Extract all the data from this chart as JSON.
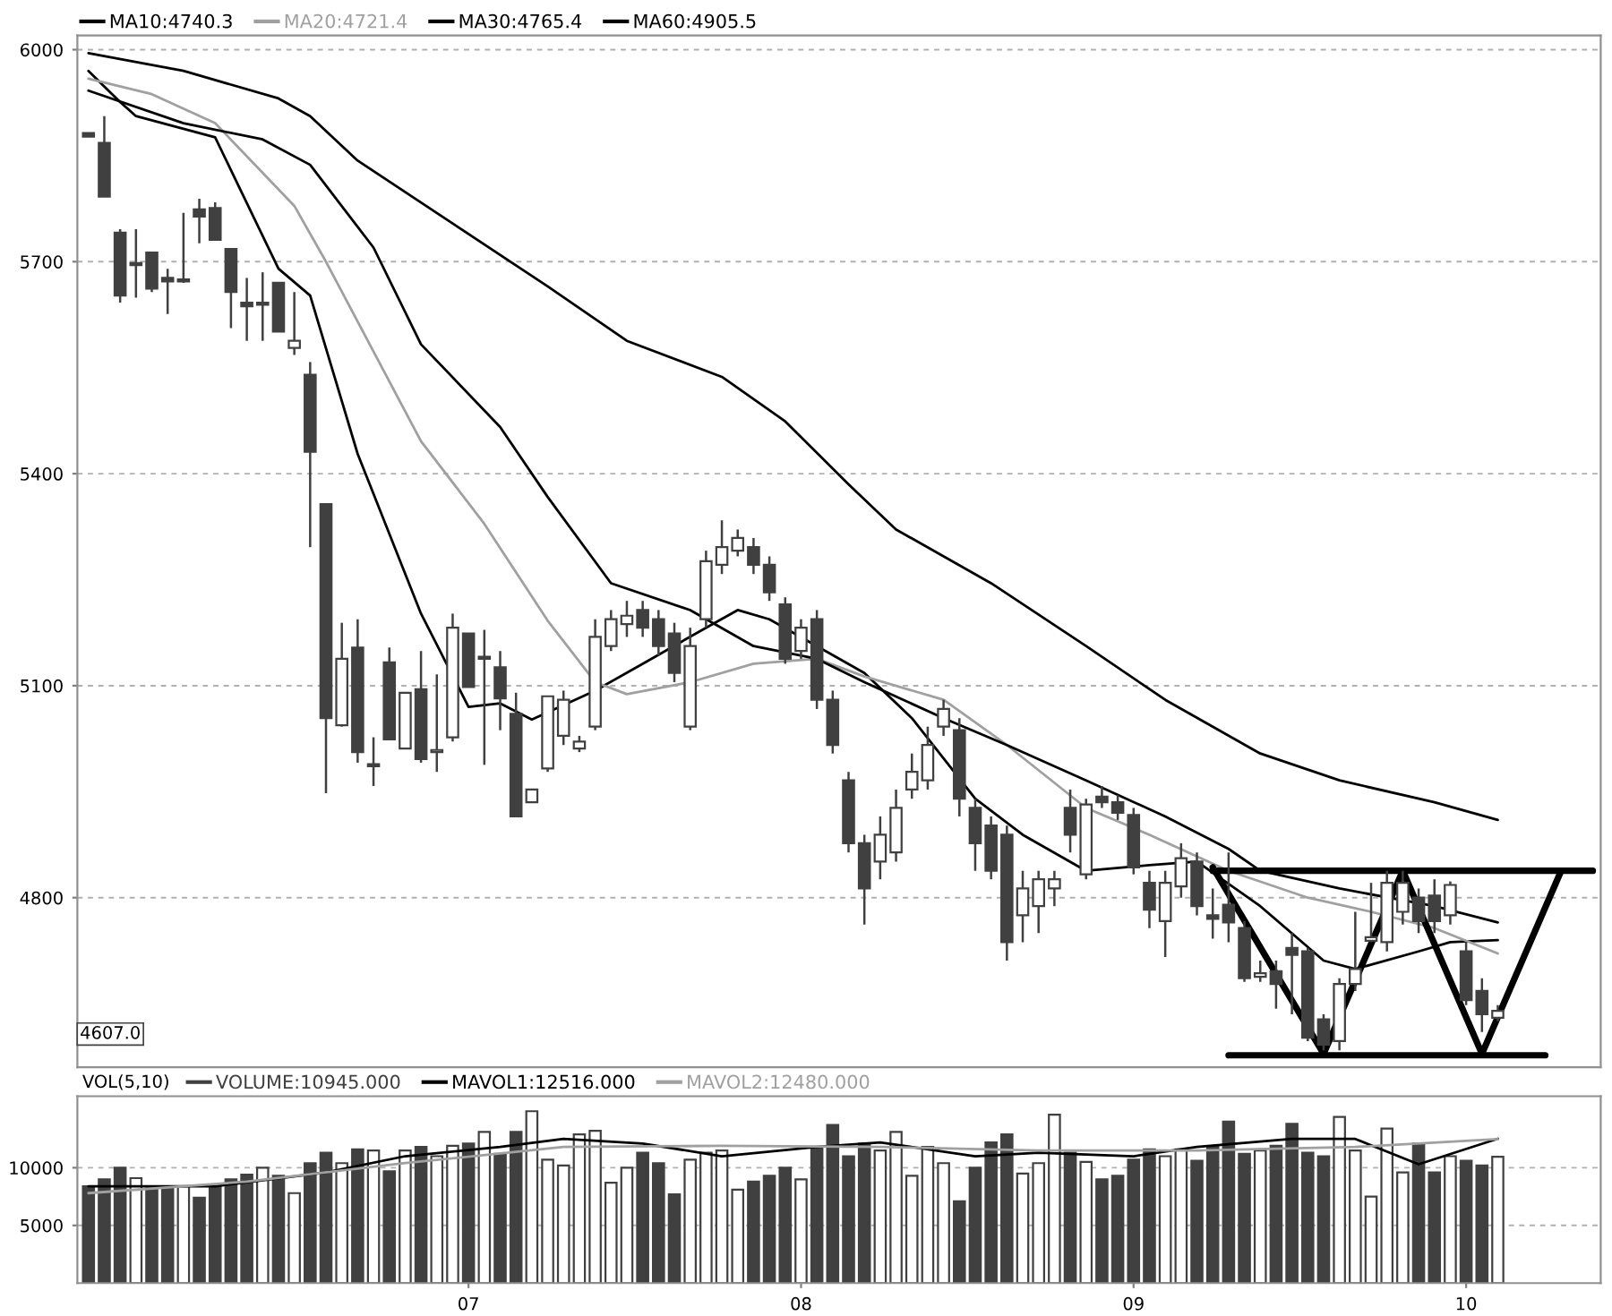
{
  "chart_data": [
    {
      "type": "candlestick",
      "color": "#404040",
      "categories": [
        null,
        null,
        null,
        null,
        null,
        null,
        null,
        null,
        null,
        null,
        null,
        null,
        null,
        null,
        null,
        null,
        null,
        null,
        null,
        null,
        null,
        null,
        null,
        null,
        null,
        null,
        null,
        null,
        null,
        null,
        null,
        null,
        null,
        null,
        null,
        null,
        null,
        null,
        null,
        null,
        null,
        null,
        null,
        null,
        null,
        null,
        null,
        null,
        null,
        null,
        null,
        null,
        null,
        null,
        null,
        null,
        null,
        null,
        null,
        null,
        null,
        null,
        null,
        null,
        null,
        null,
        null,
        null,
        null,
        null,
        null,
        null,
        null,
        null,
        null,
        null,
        null,
        null,
        null,
        null,
        null,
        null,
        null,
        null,
        null,
        null,
        null,
        null,
        null,
        null,
        null,
        null,
        null,
        null,
        null,
        null
      ],
      "ohlc": [
        [
          5882,
          5882,
          5877,
          5877
        ],
        [
          5868,
          5906,
          5792,
          5792
        ],
        [
          5741,
          5746,
          5642,
          5652
        ],
        [
          5695,
          5746,
          5649,
          5698
        ],
        [
          5713,
          5713,
          5657,
          5662
        ],
        [
          5677,
          5690,
          5626,
          5672
        ],
        [
          5672,
          5769,
          5670,
          5675
        ],
        [
          5774,
          5789,
          5726,
          5764
        ],
        [
          5776,
          5784,
          5731,
          5731
        ],
        [
          5718,
          5718,
          5606,
          5657
        ],
        [
          5642,
          5677,
          5588,
          5637
        ],
        [
          5639,
          5685,
          5588,
          5642
        ],
        [
          5670,
          5670,
          5601,
          5601
        ],
        [
          5578,
          5657,
          5568,
          5588
        ],
        [
          5540,
          5558,
          5296,
          5431
        ],
        [
          5357,
          5357,
          4948,
          5054
        ],
        [
          5044,
          5189,
          5042,
          5138
        ],
        [
          5154,
          5194,
          4991,
          5006
        ],
        [
          4986,
          5027,
          4958,
          4989
        ],
        [
          5133,
          5154,
          5024,
          5024
        ],
        [
          5011,
          5090,
          5011,
          5090
        ],
        [
          5095,
          5149,
          4991,
          4996
        ],
        [
          5006,
          5116,
          4978,
          5009
        ],
        [
          5027,
          5202,
          5021,
          5182
        ],
        [
          5174,
          5174,
          5098,
          5098
        ],
        [
          5138,
          5179,
          4988,
          5141
        ],
        [
          5126,
          5149,
          5037,
          5082
        ],
        [
          5060,
          5090,
          4915,
          4915
        ],
        [
          4935,
          4953,
          4935,
          4953
        ],
        [
          4983,
          5085,
          4978,
          5085
        ],
        [
          5029,
          5093,
          5016,
          5080
        ],
        [
          5011,
          5029,
          5006,
          5021
        ],
        [
          5042,
          5194,
          5037,
          5169
        ],
        [
          5156,
          5207,
          5149,
          5194
        ],
        [
          5187,
          5220,
          5169,
          5199
        ],
        [
          5207,
          5220,
          5169,
          5182
        ],
        [
          5194,
          5207,
          5143,
          5156
        ],
        [
          5174,
          5189,
          5105,
          5118
        ],
        [
          5042,
          5182,
          5037,
          5156
        ],
        [
          5194,
          5291,
          5182,
          5276
        ],
        [
          5271,
          5334,
          5258,
          5296
        ],
        [
          5291,
          5321,
          5283,
          5309
        ],
        [
          5296,
          5309,
          5258,
          5271
        ],
        [
          5271,
          5283,
          5220,
          5232
        ],
        [
          5215,
          5225,
          5131,
          5138
        ],
        [
          5149,
          5194,
          5138,
          5182
        ],
        [
          5194,
          5207,
          5067,
          5080
        ],
        [
          5080,
          5093,
          5004,
          5016
        ],
        [
          4966,
          4978,
          4864,
          4877
        ],
        [
          4877,
          4889,
          4762,
          4813
        ],
        [
          4851,
          4915,
          4826,
          4889
        ],
        [
          4864,
          4953,
          4851,
          4927
        ],
        [
          4953,
          5004,
          4940,
          4978
        ],
        [
          4966,
          5042,
          4953,
          5016
        ],
        [
          5042,
          5080,
          5029,
          5067
        ],
        [
          5037,
          5054,
          4915,
          4940
        ],
        [
          4927,
          4940,
          4838,
          4877
        ],
        [
          4902,
          4915,
          4826,
          4838
        ],
        [
          4889,
          4902,
          4711,
          4737
        ],
        [
          4775,
          4838,
          4737,
          4813
        ],
        [
          4788,
          4838,
          4750,
          4826
        ],
        [
          4813,
          4838,
          4788,
          4826
        ],
        [
          4927,
          4953,
          4864,
          4889
        ],
        [
          4833,
          4940,
          4826,
          4932
        ],
        [
          4943,
          4958,
          4927,
          4935
        ],
        [
          4935,
          4945,
          4910,
          4920
        ],
        [
          4917,
          4927,
          4833,
          4843
        ],
        [
          4821,
          4838,
          4757,
          4783
        ],
        [
          4767,
          4838,
          4716,
          4821
        ],
        [
          4816,
          4877,
          4800,
          4856
        ],
        [
          4851,
          4864,
          4775,
          4788
        ],
        [
          4775,
          4813,
          4742,
          4770
        ],
        [
          4790,
          4864,
          4737,
          4765
        ],
        [
          4757,
          4767,
          4681,
          4686
        ],
        [
          4688,
          4711,
          4681,
          4693
        ],
        [
          4696,
          4711,
          4643,
          4678
        ],
        [
          4729,
          4750,
          4635,
          4719
        ],
        [
          4724,
          4729,
          4597,
          4602
        ],
        [
          4628,
          4635,
          4584,
          4592
        ],
        [
          4597,
          4686,
          4584,
          4678
        ],
        [
          4678,
          4780,
          4668,
          4699
        ],
        [
          4739,
          4821,
          4737,
          4744
        ],
        [
          4737,
          4838,
          4724,
          4821
        ],
        [
          4780,
          4838,
          4762,
          4821
        ],
        [
          4800,
          4813,
          4750,
          4767
        ],
        [
          4803,
          4826,
          4750,
          4767
        ],
        [
          4775,
          4823,
          4762,
          4818
        ],
        [
          4724,
          4737,
          4648,
          4655
        ],
        [
          4668,
          4686,
          4610,
          4635
        ],
        [
          4630,
          4648,
          4625,
          4640
        ],
        null,
        null,
        null,
        null,
        null,
        null
      ],
      "series": [
        {
          "type": "line",
          "name": "MA10:4740.3",
          "color": "#000000",
          "values": [
            5970,
            null,
            5926,
            5906,
            null,
            null,
            null,
            null,
            5876,
            null,
            null,
            null,
            5690,
            null,
            5652,
            null,
            null,
            5428,
            null,
            null,
            null,
            5202,
            null,
            null,
            5070,
            null,
            5075,
            null,
            5052,
            null,
            null,
            null,
            5093,
            null,
            null,
            5131,
            null,
            null,
            null,
            5182,
            null,
            5207,
            null,
            5194,
            null,
            null,
            5156,
            null,
            null,
            5118,
            null,
            null,
            5054,
            null,
            null,
            null,
            4940,
            null,
            null,
            4889,
            null,
            null,
            null,
            4838,
            null,
            null,
            null,
            4846,
            null,
            null,
            4851,
            null,
            null,
            null,
            4788,
            null,
            null,
            null,
            4711,
            null,
            4699,
            null,
            null,
            null,
            4724,
            null,
            4737,
            null,
            null,
            4740,
            null,
            null,
            null,
            null,
            null,
            null
          ]
        },
        {
          "type": "line",
          "name": "MA20:4721.4",
          "color": "#a0a0a0",
          "values": [
            5959,
            null,
            null,
            null,
            5937,
            null,
            null,
            null,
            5896,
            null,
            null,
            null,
            null,
            5779,
            null,
            5700,
            null,
            null,
            null,
            null,
            null,
            5446,
            null,
            null,
            null,
            5329,
            null,
            null,
            null,
            5192,
            null,
            null,
            5105,
            null,
            5088,
            null,
            null,
            null,
            5105,
            null,
            null,
            null,
            5131,
            null,
            null,
            null,
            5138,
            null,
            null,
            5113,
            null,
            null,
            null,
            null,
            5080,
            null,
            null,
            null,
            5016,
            null,
            null,
            null,
            null,
            4927,
            null,
            null,
            null,
            4889,
            null,
            null,
            null,
            null,
            4838,
            null,
            null,
            null,
            null,
            4800,
            null,
            null,
            null,
            4780,
            null,
            null,
            null,
            4757,
            null,
            null,
            null,
            4721,
            null,
            null,
            null,
            null,
            null,
            null
          ]
        },
        {
          "type": "line",
          "name": "MA30:4765.4",
          "color": "#000000",
          "values": [
            5942,
            null,
            null,
            null,
            null,
            null,
            5896,
            null,
            null,
            null,
            null,
            5873,
            null,
            null,
            5837,
            null,
            null,
            null,
            5720,
            null,
            null,
            5583,
            null,
            null,
            null,
            null,
            5466,
            null,
            null,
            5367,
            null,
            null,
            null,
            5245,
            null,
            null,
            null,
            null,
            5207,
            null,
            null,
            null,
            5156,
            null,
            null,
            null,
            5138,
            null,
            null,
            5105,
            null,
            null,
            null,
            null,
            5054,
            null,
            null,
            null,
            5016,
            null,
            null,
            null,
            null,
            4966,
            null,
            null,
            null,
            null,
            4915,
            null,
            null,
            null,
            4869,
            null,
            4838,
            null,
            null,
            null,
            null,
            4813,
            null,
            null,
            null,
            null,
            null,
            4788,
            null,
            null,
            null,
            4765,
            null,
            null,
            null,
            null,
            null,
            null
          ]
        },
        {
          "type": "line",
          "name": "MA60:4905.5",
          "color": "#000000",
          "values": [
            5995,
            null,
            null,
            null,
            null,
            null,
            5970,
            null,
            null,
            null,
            null,
            null,
            5931,
            null,
            5906,
            null,
            null,
            5843,
            null,
            null,
            null,
            null,
            null,
            5754,
            null,
            null,
            null,
            null,
            null,
            5665,
            null,
            null,
            null,
            null,
            5588,
            null,
            null,
            null,
            null,
            null,
            5537,
            null,
            null,
            null,
            5474,
            null,
            null,
            null,
            5385,
            null,
            null,
            5321,
            null,
            null,
            null,
            null,
            null,
            5245,
            null,
            null,
            null,
            null,
            null,
            5156,
            null,
            null,
            null,
            null,
            5080,
            null,
            null,
            null,
            null,
            null,
            5004,
            null,
            null,
            null,
            null,
            4966,
            null,
            null,
            null,
            null,
            null,
            4935,
            null,
            null,
            null,
            4910,
            null,
            null,
            null,
            null,
            null,
            null
          ]
        },
        {
          "type": "line",
          "color": "#000000",
          "values": [
            null,
            null,
            null,
            null,
            null,
            null,
            null,
            null,
            null,
            null,
            null,
            null,
            null,
            null,
            null,
            null,
            null,
            null,
            null,
            null,
            null,
            null,
            null,
            null,
            null,
            null,
            null,
            null,
            null,
            null,
            null,
            null,
            null,
            null,
            null,
            null,
            null,
            null,
            null,
            null,
            null,
            null,
            null,
            null,
            null,
            null,
            null,
            null,
            null,
            null,
            null,
            null,
            null,
            null,
            null,
            null,
            null,
            null,
            null,
            null,
            null,
            null,
            null,
            null,
            null,
            null,
            null,
            null,
            null,
            null,
            null,
            4843,
            null,
            null,
            null,
            null,
            null,
            null,
            4579,
            null,
            null,
            null,
            null,
            4838,
            null,
            null,
            null,
            null,
            4579,
            null,
            null,
            null,
            null,
            4838,
            null,
            null
          ]
        },
        {
          "type": "line",
          "color": "#000000",
          "values": [
            null,
            null,
            null,
            null,
            null,
            null,
            null,
            null,
            null,
            null,
            null,
            null,
            null,
            null,
            null,
            null,
            null,
            null,
            null,
            null,
            null,
            null,
            null,
            null,
            null,
            null,
            null,
            null,
            null,
            null,
            null,
            null,
            null,
            null,
            null,
            null,
            null,
            null,
            null,
            null,
            null,
            null,
            null,
            null,
            null,
            null,
            null,
            null,
            null,
            null,
            null,
            null,
            null,
            null,
            null,
            null,
            null,
            null,
            null,
            null,
            null,
            null,
            null,
            null,
            null,
            null,
            null,
            null,
            null,
            null,
            null,
            4838,
            null,
            null,
            null,
            null,
            null,
            null,
            null,
            null,
            null,
            null,
            null,
            null,
            null,
            null,
            null,
            null,
            null,
            null,
            null,
            null,
            null,
            null,
            null,
            4838
          ]
        },
        {
          "type": "line",
          "color": "#000000",
          "values": [
            null,
            null,
            null,
            null,
            null,
            null,
            null,
            null,
            null,
            null,
            null,
            null,
            null,
            null,
            null,
            null,
            null,
            null,
            null,
            null,
            null,
            null,
            null,
            null,
            null,
            null,
            null,
            null,
            null,
            null,
            null,
            null,
            null,
            null,
            null,
            null,
            null,
            null,
            null,
            null,
            null,
            null,
            null,
            null,
            null,
            null,
            null,
            null,
            null,
            null,
            null,
            null,
            null,
            null,
            null,
            null,
            null,
            null,
            null,
            null,
            null,
            null,
            null,
            null,
            null,
            null,
            null,
            null,
            null,
            null,
            null,
            null,
            4577,
            null,
            null,
            null,
            null,
            null,
            null,
            null,
            null,
            null,
            null,
            null,
            null,
            null,
            null,
            null,
            null,
            null,
            null,
            null,
            4577,
            null,
            null,
            null
          ]
        }
      ],
      "annotations": [
        {
          "text": "4607.0",
          "y": 4607
        }
      ],
      "ylim": [
        4560,
        6020
      ],
      "yticks": [
        4800,
        5100,
        5400,
        5700,
        6000
      ],
      "grid": "y",
      "legend": "top left",
      "tick_labels": "y"
    },
    {
      "type": "bar",
      "categories": [
        null,
        null,
        null,
        null,
        null,
        null,
        null,
        null,
        null,
        null,
        null,
        null,
        null,
        null,
        null,
        null,
        null,
        null,
        null,
        null,
        null,
        null,
        null,
        null,
        "07",
        null,
        null,
        null,
        null,
        null,
        null,
        null,
        null,
        null,
        null,
        null,
        null,
        null,
        null,
        null,
        null,
        null,
        null,
        null,
        null,
        "08",
        null,
        null,
        null,
        null,
        null,
        null,
        null,
        null,
        null,
        null,
        null,
        null,
        null,
        null,
        null,
        null,
        null,
        null,
        null,
        null,
        "09",
        null,
        null,
        null,
        null,
        null,
        null,
        null,
        null,
        null,
        null,
        null,
        null,
        null,
        null,
        null,
        null,
        null,
        null,
        null,
        null,
        "10",
        null,
        null,
        null,
        null,
        null,
        null,
        null,
        null
      ],
      "series": [
        {
          "type": "bar",
          "name": "VOLUME:10945.000",
          "color": "#404040",
          "colors": [
            "#404040",
            "#404040",
            "#404040",
            "#ffffff",
            "#404040",
            "#404040",
            "#ffffff",
            "#404040",
            "#404040",
            "#404040",
            "#404040",
            "#ffffff",
            "#404040",
            "#ffffff",
            "#404040",
            "#404040",
            "#ffffff",
            "#404040",
            "#ffffff",
            "#404040",
            "#ffffff",
            "#404040",
            "#ffffff",
            "#ffffff",
            "#404040",
            "#ffffff",
            "#404040",
            "#404040",
            "#ffffff",
            "#ffffff",
            "#ffffff",
            "#ffffff",
            "#ffffff",
            "#ffffff",
            "#ffffff",
            "#404040",
            "#404040",
            "#404040",
            "#ffffff",
            "#ffffff",
            "#ffffff",
            "#ffffff",
            "#404040",
            "#404040",
            "#404040",
            "#ffffff",
            "#404040",
            "#404040",
            "#404040",
            "#404040",
            "#ffffff",
            "#ffffff",
            "#ffffff",
            "#ffffff",
            "#ffffff",
            "#404040",
            "#404040",
            "#404040",
            "#404040",
            "#ffffff",
            "#ffffff",
            "#ffffff",
            "#404040",
            "#ffffff",
            "#404040",
            "#404040",
            "#404040",
            "#404040",
            "#ffffff",
            "#ffffff",
            "#404040",
            "#404040",
            "#404040",
            "#404040",
            "#ffffff",
            "#404040",
            "#404040",
            "#404040",
            "#404040",
            "#ffffff",
            "#ffffff",
            "#ffffff",
            "#ffffff",
            "#ffffff",
            "#404040",
            "#404040",
            "#ffffff",
            "#404040",
            "#404040",
            "#ffffff",
            null,
            null,
            null,
            null,
            null,
            null
          ],
          "values": [
            8400,
            9000,
            10000,
            9100,
            8400,
            8400,
            8400,
            7400,
            8400,
            9000,
            9400,
            10000,
            9300,
            7800,
            10400,
            11300,
            10400,
            11600,
            11500,
            9700,
            11500,
            11800,
            11000,
            11900,
            12100,
            13100,
            11200,
            13100,
            14900,
            10700,
            10200,
            12900,
            13200,
            8700,
            10000,
            11300,
            10400,
            7700,
            10700,
            11300,
            11500,
            8100,
            8800,
            9300,
            10000,
            9000,
            11800,
            13700,
            11000,
            12100,
            11500,
            13100,
            9300,
            11800,
            10400,
            7100,
            10000,
            12200,
            12900,
            9500,
            10400,
            14600,
            11300,
            10500,
            9000,
            9300,
            10700,
            11600,
            11000,
            11600,
            10600,
            11800,
            14000,
            11200,
            11500,
            11900,
            13800,
            11300,
            11000,
            14400,
            11500,
            7500,
            13400,
            9600,
            12100,
            9600,
            11000,
            10600,
            10200,
            10945,
            null,
            null,
            null,
            null,
            null,
            null
          ]
        },
        {
          "type": "line",
          "name": "MAVOL1:12516.000",
          "color": "#000000",
          "values": [
            8400,
            null,
            null,
            null,
            null,
            null,
            null,
            null,
            8400,
            null,
            null,
            null,
            null,
            null,
            null,
            9600,
            null,
            null,
            null,
            null,
            11000,
            null,
            null,
            null,
            null,
            null,
            11800,
            null,
            null,
            null,
            12500,
            null,
            null,
            null,
            null,
            12100,
            null,
            null,
            null,
            null,
            11000,
            null,
            null,
            null,
            null,
            null,
            11800,
            null,
            null,
            null,
            12200,
            null,
            null,
            null,
            null,
            null,
            11000,
            null,
            null,
            null,
            11300,
            null,
            null,
            null,
            null,
            null,
            11000,
            null,
            null,
            null,
            11800,
            null,
            null,
            null,
            null,
            null,
            12500,
            null,
            null,
            null,
            12500,
            null,
            null,
            null,
            10300,
            null,
            null,
            null,
            null,
            12516,
            null,
            null,
            null,
            null,
            null,
            null
          ]
        },
        {
          "type": "line",
          "name": "MAVOL2:12480.000",
          "color": "#a0a0a0",
          "values": [
            7800,
            null,
            null,
            null,
            null,
            null,
            null,
            null,
            null,
            null,
            8800,
            null,
            null,
            null,
            null,
            null,
            null,
            null,
            null,
            null,
            10400,
            null,
            null,
            null,
            null,
            null,
            null,
            null,
            null,
            null,
            11800,
            null,
            null,
            null,
            null,
            null,
            null,
            null,
            null,
            null,
            11900,
            null,
            null,
            null,
            null,
            null,
            null,
            null,
            null,
            null,
            11800,
            null,
            null,
            null,
            null,
            null,
            null,
            null,
            null,
            null,
            11500,
            null,
            null,
            null,
            null,
            null,
            null,
            null,
            null,
            null,
            11500,
            null,
            null,
            null,
            null,
            null,
            null,
            null,
            null,
            null,
            11800,
            null,
            null,
            null,
            null,
            null,
            null,
            null,
            null,
            12480,
            null,
            null,
            null,
            null,
            null,
            null
          ]
        }
      ],
      "annotations": [
        "VOL(5,10)"
      ],
      "ylim": [
        0,
        16200
      ],
      "yticks": [
        5000,
        10000
      ],
      "grid": "y",
      "legend": "top left"
    }
  ]
}
